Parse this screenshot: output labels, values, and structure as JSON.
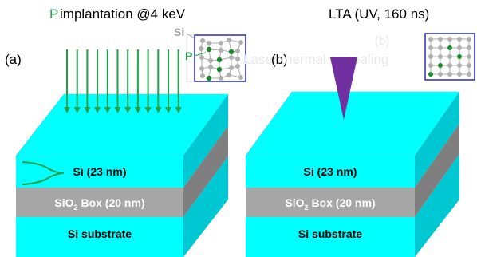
{
  "panel_a": {
    "label": "(a)",
    "title_p": "P",
    "title_rest": " implantation @4 keV",
    "inset_si": "Si",
    "inset_p": "P",
    "layer_top": "Si (23 nm)",
    "layer_box_prefix": "SiO",
    "layer_box_sub": "2",
    "layer_box_suffix": " Box (20 nm)",
    "layer_bottom": "Si substrate"
  },
  "panel_b": {
    "label": "(b)",
    "title": "LTA (UV, 160 ns)",
    "faint_label": "(b)",
    "faint_text": "Laser thermal annealing",
    "layer_top": "Si (23 nm)",
    "layer_box_prefix": "SiO",
    "layer_box_sub": "2",
    "layer_box_suffix": " Box (20 nm)",
    "layer_bottom": "Si substrate"
  },
  "colors": {
    "si_front": "#00ffff",
    "si_side": "#00c8d2",
    "box_front": "#a6a6a6",
    "box_side": "#7f7f7f",
    "arrow_green": "#23a04a",
    "laser_purple": "#7030a0",
    "inset_border": "#2828c8",
    "atom_gray": "#b0b0b0",
    "dopant_green": "#1a8a2a"
  }
}
